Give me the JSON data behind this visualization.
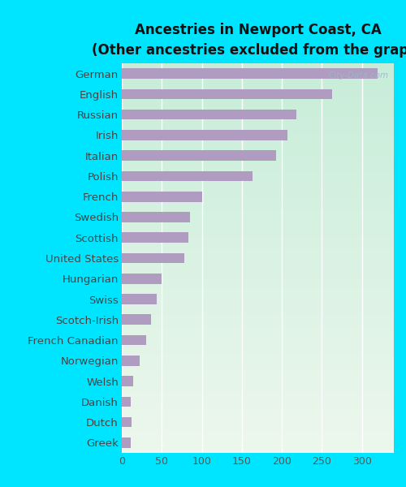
{
  "title": "Ancestries in Newport Coast, CA\n(Other ancestries excluded from the graph)",
  "categories": [
    "Greek",
    "Dutch",
    "Danish",
    "Welsh",
    "Norwegian",
    "French Canadian",
    "Scotch-Irish",
    "Swiss",
    "Hungarian",
    "United States",
    "Scottish",
    "Swedish",
    "French",
    "Polish",
    "Italian",
    "Irish",
    "Russian",
    "English",
    "German"
  ],
  "values": [
    11,
    12,
    11,
    14,
    22,
    30,
    37,
    44,
    50,
    78,
    83,
    85,
    100,
    163,
    193,
    207,
    218,
    263,
    320
  ],
  "bar_color": "#b09cc0",
  "background_color": "#00e5ff",
  "xlim": [
    0,
    340
  ],
  "xticks": [
    0,
    50,
    100,
    150,
    200,
    250,
    300
  ],
  "title_fontsize": 12,
  "label_fontsize": 9.5,
  "tick_fontsize": 9,
  "watermark": "City-Data.com"
}
